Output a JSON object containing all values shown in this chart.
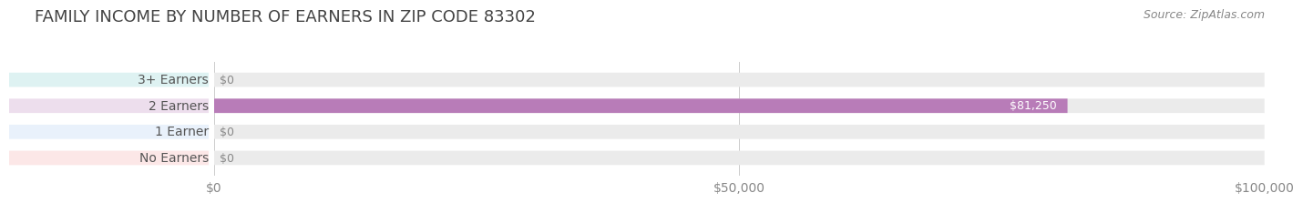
{
  "title": "FAMILY INCOME BY NUMBER OF EARNERS IN ZIP CODE 83302",
  "source": "Source: ZipAtlas.com",
  "categories": [
    "No Earners",
    "1 Earner",
    "2 Earners",
    "3+ Earners"
  ],
  "values": [
    0,
    0,
    81250,
    0
  ],
  "bar_colors": [
    "#f4a0a0",
    "#a8c8f0",
    "#b87cb8",
    "#7ecece"
  ],
  "label_colors": [
    "#f4a0a0",
    "#a8c8f0",
    "#b87cb8",
    "#7ecece"
  ],
  "bar_bg_color": "#f0f0f0",
  "track_bg_color": "#ebebeb",
  "xlim": [
    0,
    100000
  ],
  "xticks": [
    0,
    50000,
    100000
  ],
  "xtick_labels": [
    "$0",
    "$50,000",
    "$100,000"
  ],
  "title_fontsize": 13,
  "label_fontsize": 10,
  "value_fontsize": 9,
  "source_fontsize": 9,
  "bar_height": 0.55,
  "fig_bg_color": "#ffffff"
}
